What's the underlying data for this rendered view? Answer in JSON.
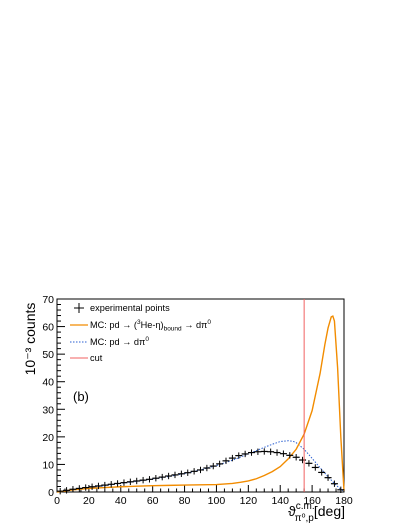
{
  "chart_data": {
    "type": "line",
    "panel_label": "(b)",
    "xlabel": {
      "symbol": "ϑ",
      "sup": "c.m.",
      "sub": "π⁰,p",
      "unit": "[deg]"
    },
    "ylabel": "10⁻³ counts",
    "xlim": [
      0,
      180
    ],
    "ylim": [
      0,
      70
    ],
    "x_ticks": [
      0,
      20,
      40,
      60,
      80,
      100,
      120,
      140,
      160,
      180
    ],
    "y_ticks": [
      0,
      10,
      20,
      30,
      40,
      50,
      60,
      70
    ],
    "grid": false,
    "legend_placement": "top-left",
    "series": [
      {
        "name": "experimental points",
        "style": "points-with-errorbars",
        "color": "#000000",
        "x": [
          2,
          6,
          10,
          14,
          18,
          22,
          26,
          30,
          34,
          38,
          42,
          46,
          50,
          54,
          58,
          62,
          66,
          70,
          74,
          78,
          82,
          86,
          90,
          94,
          98,
          102,
          106,
          110,
          114,
          118,
          122,
          126,
          130,
          134,
          138,
          142,
          146,
          150,
          154,
          158,
          162,
          166,
          170,
          174,
          178
        ],
        "y": [
          0.3,
          0.6,
          1.0,
          1.3,
          1.6,
          1.9,
          2.2,
          2.5,
          2.8,
          3.1,
          3.4,
          3.7,
          4.0,
          4.3,
          4.6,
          5.0,
          5.4,
          5.8,
          6.2,
          6.6,
          7.0,
          7.5,
          8.0,
          8.7,
          9.4,
          10.2,
          11.3,
          12.3,
          13.2,
          13.8,
          14.3,
          14.6,
          14.7,
          14.6,
          14.3,
          13.9,
          13.3,
          12.6,
          11.6,
          10.4,
          8.9,
          7.1,
          5.2,
          3.0,
          0.8
        ]
      },
      {
        "name_prefix": "MC: pd → (",
        "name_sup": "3",
        "name_mid": "He-η)",
        "name_sub": "bound",
        "name_suffix": " → dπ",
        "name_suffix_sup": "0",
        "style": "solid-line",
        "color": "#f28c00",
        "x": [
          0,
          10,
          20,
          30,
          40,
          50,
          60,
          70,
          80,
          90,
          100,
          110,
          115,
          120,
          125,
          130,
          135,
          140,
          145,
          150,
          155,
          160,
          165,
          168,
          170,
          172,
          173,
          174,
          176,
          178,
          180
        ],
        "y": [
          0,
          0.8,
          1.3,
          1.6,
          1.9,
          2.1,
          2.3,
          2.4,
          2.5,
          2.6,
          2.7,
          3.1,
          3.5,
          4.0,
          4.8,
          6.0,
          7.4,
          9.2,
          12.0,
          15.5,
          21.0,
          29.5,
          43.0,
          53.5,
          59.5,
          63.5,
          63.8,
          62.0,
          45.0,
          20.0,
          0.5
        ]
      },
      {
        "name_prefix": "MC: pd → dπ",
        "name_sup": "0",
        "style": "dotted-line",
        "color": "#2a5fd1",
        "x": [
          0,
          10,
          20,
          30,
          40,
          50,
          60,
          70,
          80,
          90,
          100,
          110,
          120,
          130,
          135,
          140,
          145,
          148,
          150,
          155,
          160,
          165,
          170,
          175,
          178,
          180
        ],
        "y": [
          0,
          0.7,
          1.5,
          2.3,
          3.1,
          3.9,
          4.7,
          5.6,
          6.7,
          8.0,
          9.6,
          11.5,
          13.8,
          16.2,
          17.3,
          18.3,
          18.6,
          18.4,
          17.9,
          15.5,
          12.2,
          8.8,
          5.5,
          2.5,
          1.0,
          0.2
        ]
      },
      {
        "name": "cut",
        "style": "vertical-line",
        "color": "#f06060",
        "x": 155
      }
    ]
  }
}
